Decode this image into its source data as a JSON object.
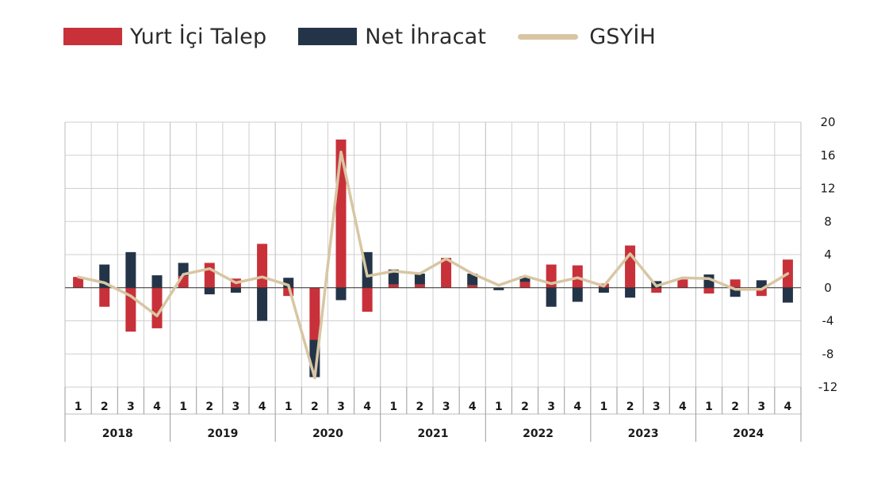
{
  "colors": {
    "yurt_ici_talep": "#c8313a",
    "net_ihracat": "#243448",
    "gsyih": "#d8c6a3",
    "grid": "#cfcfcf",
    "axis": "#9a9a9a"
  },
  "legend": [
    {
      "label": "Yurt İçi Talep",
      "type": "box",
      "color": "#c8313a"
    },
    {
      "label": "Net İhracat",
      "type": "box",
      "color": "#243448"
    },
    {
      "label": "GSYİH",
      "type": "line",
      "color": "#d8c6a3"
    }
  ],
  "chart_data": {
    "type": "bar",
    "stacked": true,
    "quarters": [
      "1",
      "2",
      "3",
      "4",
      "1",
      "2",
      "3",
      "4",
      "1",
      "2",
      "3",
      "4",
      "1",
      "2",
      "3",
      "4",
      "1",
      "2",
      "3",
      "4",
      "1",
      "2",
      "3",
      "4",
      "1",
      "2",
      "3",
      "4"
    ],
    "years": [
      "2018",
      "2019",
      "2020",
      "2021",
      "2022",
      "2023",
      "2024"
    ],
    "ylim": [
      -12,
      20
    ],
    "yticks": [
      20,
      16,
      12,
      8,
      4,
      0,
      -4,
      -8,
      -12
    ],
    "y_axis_position": "right",
    "grid": true,
    "legend_position": "top-left",
    "series": [
      {
        "name": "Yurt İçi Talep",
        "type": "bar",
        "values": [
          1.3,
          -2.3,
          -5.3,
          -4.9,
          1.4,
          3.0,
          1.1,
          5.3,
          -1.0,
          -6.3,
          17.9,
          -2.9,
          0.4,
          0.4,
          3.6,
          0.3,
          0.0,
          0.7,
          2.8,
          2.7,
          0.5,
          5.1,
          -0.6,
          1.0,
          -0.7,
          1.0,
          -1.0,
          3.4
        ]
      },
      {
        "name": "Net İhracat",
        "type": "bar",
        "values": [
          0.0,
          2.8,
          4.3,
          1.5,
          1.6,
          -0.8,
          -0.6,
          -4.0,
          1.2,
          -4.5,
          -1.5,
          4.3,
          1.8,
          1.3,
          0.0,
          1.4,
          -0.3,
          0.7,
          -2.3,
          -1.7,
          -0.6,
          -1.2,
          0.8,
          0.0,
          1.6,
          -1.1,
          0.9,
          -1.8
        ]
      },
      {
        "name": "GSYİH",
        "type": "line",
        "values": [
          1.3,
          0.6,
          -1.0,
          -3.4,
          1.6,
          2.3,
          0.6,
          1.3,
          0.3,
          -10.9,
          16.4,
          1.4,
          2.0,
          1.7,
          3.5,
          1.7,
          0.3,
          1.4,
          0.5,
          1.2,
          0.2,
          4.1,
          0.2,
          1.2,
          1.1,
          -0.2,
          -0.2,
          1.7
        ]
      }
    ]
  }
}
